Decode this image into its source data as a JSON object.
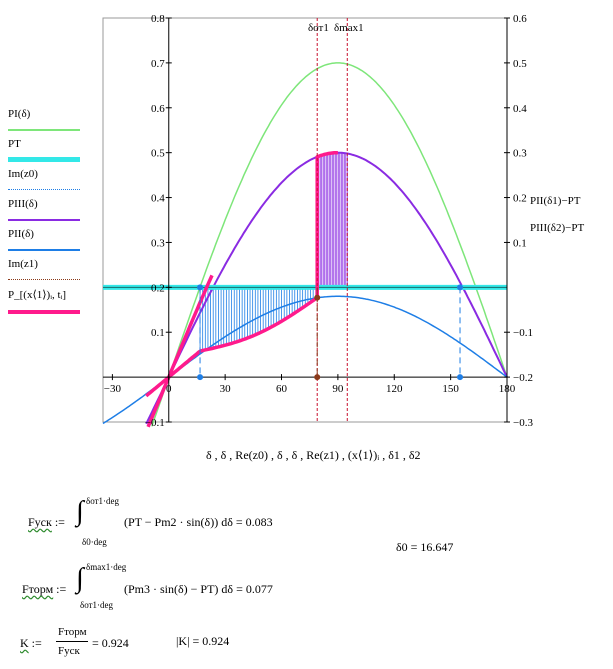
{
  "chart_data": {
    "type": "line",
    "xlabel": "δ , δ , Re(z0) , δ , δ , Re(z1) , (x⟨1⟩)ᵢ , δ1 , δ2",
    "x_ticks": [
      "−30",
      "0",
      "30",
      "60",
      "90",
      "120",
      "150",
      "180"
    ],
    "x_tick_values": [
      -30,
      0,
      30,
      60,
      90,
      120,
      150,
      180
    ],
    "xlim": [
      -35,
      180
    ],
    "ylim_left": [
      -0.1,
      0.8
    ],
    "yticks_left": [
      "−0.1",
      "0.1",
      "0.2",
      "0.3",
      "0.4",
      "0.5",
      "0.6",
      "0.7",
      "0.8"
    ],
    "ytick_left_values": [
      -0.1,
      0.1,
      0.2,
      0.3,
      0.4,
      0.5,
      0.6,
      0.7,
      0.8
    ],
    "ylim_right": [
      -0.3,
      0.6
    ],
    "yticks_right": [
      "−0.3",
      "−0.2",
      "−0.1",
      "0.1",
      "0.2",
      "0.3",
      "0.4",
      "0.5",
      "0.6"
    ],
    "ytick_right_values": [
      -0.3,
      -0.2,
      -0.1,
      0.1,
      0.2,
      0.3,
      0.4,
      0.5,
      0.6
    ],
    "grid": false,
    "legend_placement": "left",
    "series": [
      {
        "name": "PI(δ)",
        "color": "#7ee67a",
        "amplitude": 0.7
      },
      {
        "name": "PT",
        "color": "#33e8e8",
        "value": 0.2
      },
      {
        "name": "Im(z0)",
        "color": "#1e7ee6",
        "markers": [
          [
            16.647,
            0.2
          ],
          [
            16.647,
            0.0
          ]
        ]
      },
      {
        "name": "PIII(δ)",
        "color": "#8a2be2",
        "amplitude": 0.5
      },
      {
        "name": "PII(δ)",
        "color": "#1e7ee6",
        "amplitude": 0.18
      },
      {
        "name": "Im(z1)",
        "color": "#8b3a1a",
        "markers": [
          [
            79,
            0.2
          ],
          [
            79,
            0.177
          ],
          [
            79,
            0.0
          ]
        ]
      },
      {
        "name": "P_[(x⟨1⟩)ᵢ, tᵢ]",
        "color": "#ff1a8c",
        "points": [
          [
            -12,
            -0.1
          ],
          [
            0,
            0
          ],
          [
            16.647,
            0.058
          ],
          [
            30,
            0.09
          ],
          [
            45,
            0.127
          ],
          [
            60,
            0.156
          ],
          [
            79,
            0.177
          ],
          [
            79,
            0.5
          ],
          [
            90,
            0.5
          ]
        ]
      }
    ],
    "right_axis_labels": [
      "PII(δ1)−PT",
      "PIII(δ2)−PT"
    ],
    "markers": [
      {
        "name": "δот1",
        "x": 79
      },
      {
        "name": "δmax1",
        "x": 95
      }
    ],
    "pt_value": 0.2,
    "delta0_x": 16.647,
    "delta_ot1_x": 79,
    "delta_max1_x": 95,
    "delta_unstable_x": 155
  },
  "labels": {
    "delta_ot1": "δот1",
    "delta_max1": "δmax1",
    "right_label_1": "PII(δ1)−PT",
    "right_label_2": "PIII(δ2)−PT"
  },
  "formulas": {
    "f_usk_name": "Fуск",
    "f_usk_upper": "δот1·deg",
    "f_usk_lower": "δ0·deg",
    "f_usk_body": "(PT − Pm2 · sin(δ)) dδ = 0.083",
    "f_torm_name": "Fторм",
    "f_torm_upper": "δmax1·deg",
    "f_torm_lower": "δот1·deg",
    "f_torm_body": "(Pm3 · sin(δ) − PT) dδ = 0.077",
    "k_name": "K",
    "k_num": "Fторм",
    "k_den": "Fуск",
    "k_value": "= 0.924",
    "k_abs": "|K| = 0.924",
    "delta0": "δ0 = 16.647"
  }
}
